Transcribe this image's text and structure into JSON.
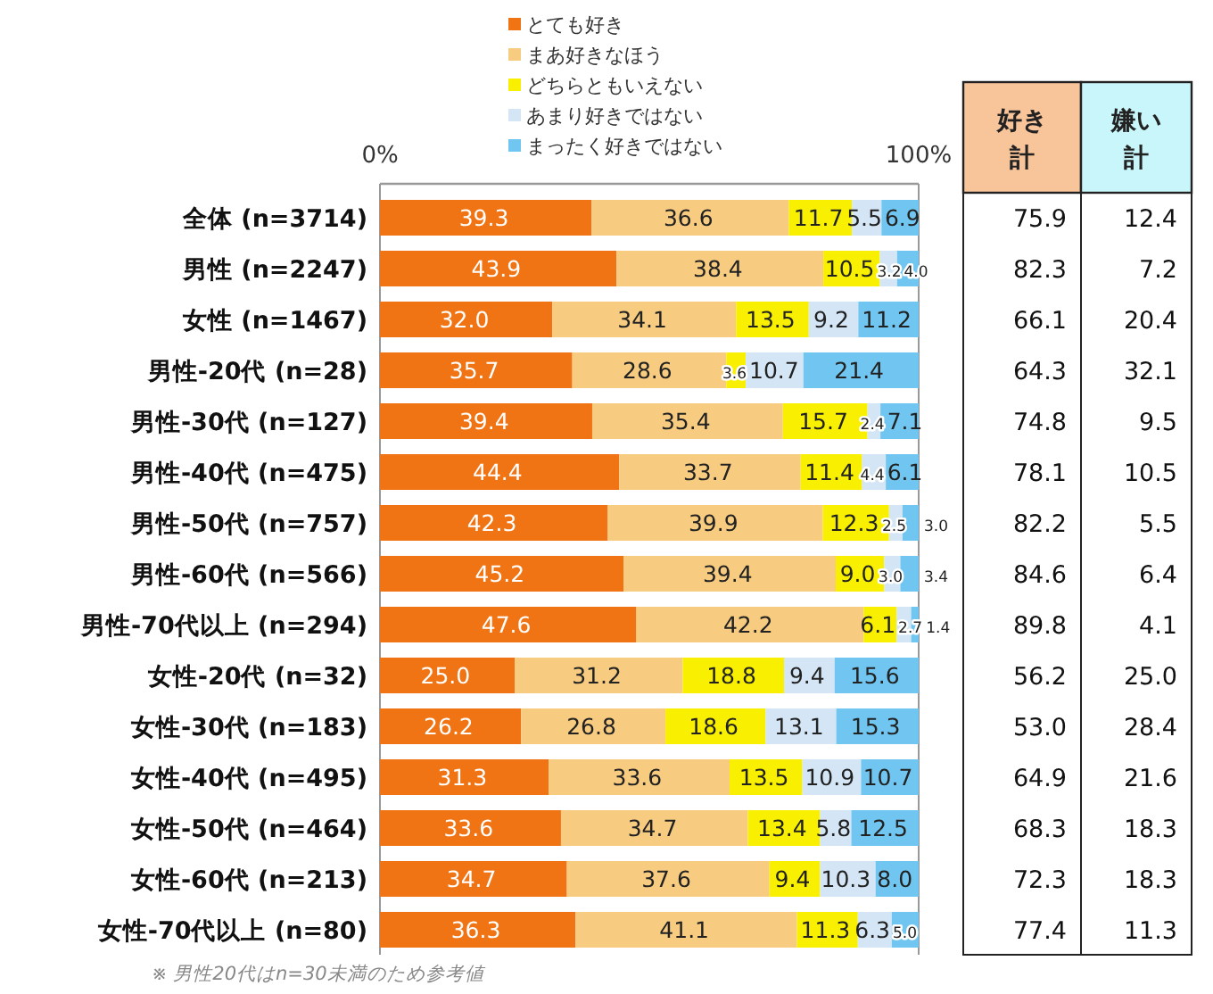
{
  "chart_data": [
    {
      "type": "bar",
      "orientation": "horizontal",
      "stacked": true,
      "legend": "top",
      "xlim": [
        0,
        100
      ],
      "xticks": [
        {
          "value": 0,
          "label": "0%"
        },
        {
          "value": 100,
          "label": "100%"
        }
      ],
      "categories": [
        "全体 (n=3714)",
        "男性 (n=2247)",
        "女性 (n=1467)",
        "男性-20代 (n=28)",
        "男性-30代 (n=127)",
        "男性-40代 (n=475)",
        "男性-50代 (n=757)",
        "男性-60代 (n=566)",
        "男性-70代以上 (n=294)",
        "女性-20代 (n=32)",
        "女性-30代 (n=183)",
        "女性-40代 (n=495)",
        "女性-50代 (n=464)",
        "女性-60代 (n=213)",
        "女性-70代以上 (n=80)"
      ],
      "series": [
        {
          "name": "とても好き",
          "color": "#f07414",
          "values": [
            39.3,
            43.9,
            32.0,
            35.7,
            39.4,
            44.4,
            42.3,
            45.2,
            47.6,
            25.0,
            26.2,
            31.3,
            33.6,
            34.7,
            36.3
          ],
          "value_labels": [
            "39.3",
            "43.9",
            "32.0",
            "35.7",
            "39.4",
            "44.4",
            "42.3",
            "45.2",
            "47.6",
            "25.0",
            "26.2",
            "31.3",
            "33.6",
            "34.7",
            "36.3"
          ]
        },
        {
          "name": "まあ好きなほう",
          "color": "#f8cc80",
          "values": [
            36.6,
            38.4,
            34.1,
            28.6,
            35.4,
            33.7,
            39.9,
            39.4,
            42.2,
            31.2,
            26.8,
            33.6,
            34.7,
            37.6,
            41.1
          ],
          "value_labels": [
            "36.6",
            "38.4",
            "34.1",
            "28.6",
            "35.4",
            "33.7",
            "39.9",
            "39.4",
            "42.2",
            "31.2",
            "26.8",
            "33.6",
            "34.7",
            "37.6",
            "41.1"
          ]
        },
        {
          "name": "どちらともいえない",
          "color": "#f8f000",
          "values": [
            11.7,
            10.5,
            13.5,
            3.6,
            15.7,
            11.4,
            12.3,
            9.0,
            6.1,
            18.8,
            18.6,
            13.5,
            13.4,
            9.4,
            11.3
          ],
          "value_labels": [
            "11.7",
            "10.5",
            "13.5",
            "3.6",
            "15.7",
            "11.4",
            "12.3",
            "9.0",
            "6.1",
            "18.8",
            "18.6",
            "13.5",
            "13.4",
            "9.4",
            "11.3"
          ]
        },
        {
          "name": "あまり好きではない",
          "color": "#d4e6f6",
          "values": [
            5.5,
            3.2,
            9.2,
            10.7,
            2.4,
            4.4,
            2.5,
            3.0,
            2.7,
            9.4,
            13.1,
            10.9,
            5.8,
            10.3,
            6.3
          ],
          "value_labels": [
            "5.5",
            "3.2",
            "9.2",
            "10.7",
            "2.4",
            "4.4",
            "2.5",
            "3.0",
            "2.7",
            "9.4",
            "13.1",
            "10.9",
            "5.8",
            "10.3",
            "6.3"
          ]
        },
        {
          "name": "まったく好きではない",
          "color": "#70c6f0",
          "values": [
            6.9,
            4.0,
            11.2,
            21.4,
            7.1,
            6.1,
            3.0,
            3.4,
            1.4,
            15.6,
            15.3,
            10.7,
            12.5,
            8.0,
            5.0
          ],
          "value_labels": [
            "6.9",
            "4.0",
            "11.2",
            "21.4",
            "7.1",
            "6.1",
            "3.0",
            "3.4",
            "1.4",
            "15.6",
            "15.3",
            "10.7",
            "12.5",
            "8.0",
            "5.0"
          ]
        }
      ],
      "annotations": [
        "※ 男性20代はn=30未満のため参考値"
      ]
    },
    {
      "type": "other",
      "categories": [
        "好き計",
        "嫌い計"
      ],
      "annotations": [
        "75.9",
        "12.4",
        "82.3",
        "7.2",
        "66.1",
        "20.4",
        "64.3",
        "32.1",
        "74.8",
        "9.5",
        "78.1",
        "10.5",
        "82.2",
        "5.5",
        "84.6",
        "6.4",
        "89.8",
        "4.1",
        "56.2",
        "25.0",
        "53.0",
        "28.4",
        "64.9",
        "21.6",
        "68.3",
        "18.3",
        "72.3",
        "18.3",
        "77.4",
        "11.3"
      ]
    }
  ]
}
